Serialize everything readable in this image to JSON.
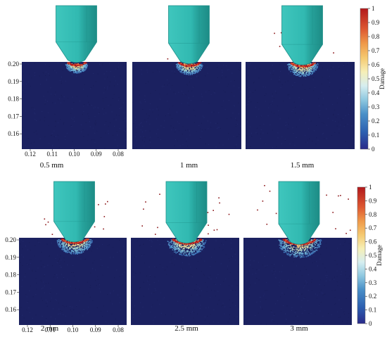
{
  "figure": {
    "top_row": {
      "panels": [
        {
          "label": "0.5 mm",
          "depth_mm": 0.5
        },
        {
          "label": "1 mm",
          "depth_mm": 1
        },
        {
          "label": "1.5 mm",
          "depth_mm": 1.5
        }
      ],
      "y_ticks": [
        "0.20",
        "0.19",
        "0.18",
        "0.17",
        "0.16"
      ],
      "x_ticks": [
        "0.12",
        "0.11",
        "0.10",
        "0.09",
        "0.08"
      ]
    },
    "bottom_row": {
      "panels": [
        {
          "label": "2 mm",
          "depth_mm": 2
        },
        {
          "label": "2.5 mm",
          "depth_mm": 2.5
        },
        {
          "label": "3 mm",
          "depth_mm": 3
        }
      ],
      "y_ticks": [
        "0.20",
        "0.19",
        "0.18",
        "0.17",
        "0.16"
      ],
      "x_ticks": [
        "0.12",
        "0.11",
        "0.10",
        "0.09",
        "0.08"
      ]
    },
    "colorbar": {
      "title": "Damage",
      "ticks": [
        "1",
        "0.9",
        "0.8",
        "0.7",
        "0.6",
        "0.5",
        "0.4",
        "0.3",
        "0.2",
        "0.1",
        "0"
      ]
    },
    "colors": {
      "workpiece": "#1b2160",
      "tool": "#2fb8b0",
      "tool_dark": "#1e8f89",
      "tool_light": "#63d6cd",
      "damage_low": "#2c3f99",
      "damage_mid": "#f0e6a0",
      "damage_high": "#b2181b"
    }
  }
}
